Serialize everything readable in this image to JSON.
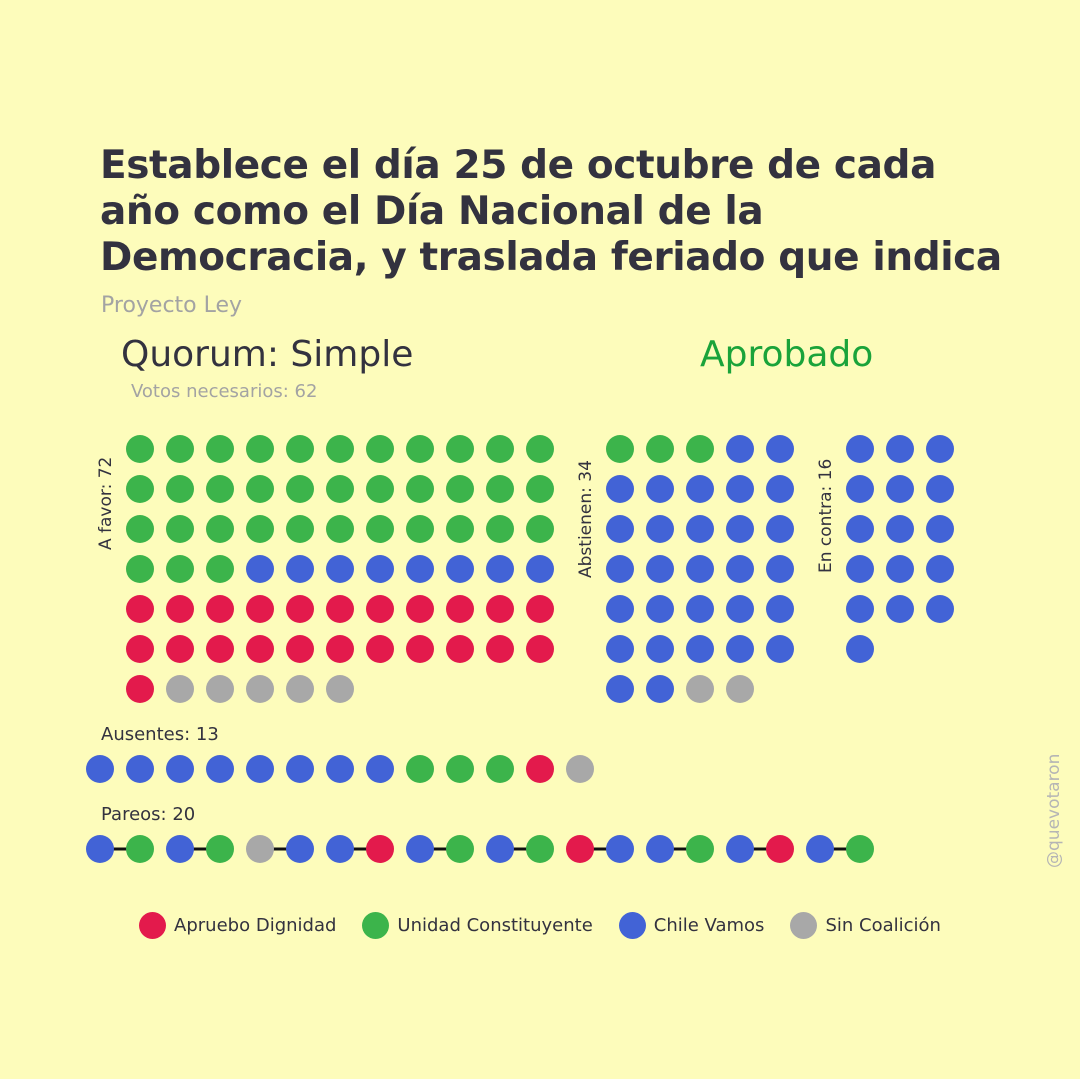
{
  "title": "Establece el día 25 de octubre de cada año como el Día Nacional de la Democracia, y traslada feriado que indica",
  "subtitle": "Proyecto Ley",
  "quorum": "Quorum: Simple",
  "votes_needed": "Votos necesarios: 62",
  "result": "Aprobado",
  "watermark": "@quevotaron",
  "colors": {
    "background": "#fdfcbb",
    "apruebo_dignidad": "#e31a4c",
    "unidad_constituyente": "#3cb44b",
    "chile_vamos": "#4263d6",
    "sin_coalicion": "#a8a8a8",
    "aprobado": "#1aa33a",
    "text": "#33323f"
  },
  "chart_data": {
    "type": "dot-matrix",
    "groups": [
      {
        "key": "a_favor",
        "label": "A favor: 72",
        "count": 72,
        "composition": {
          "unidad_constituyente": 36,
          "chile_vamos": 8,
          "apruebo_dignidad": 23,
          "sin_coalicion": 5
        }
      },
      {
        "key": "abstienen",
        "label": "Abstienen: 34",
        "count": 34,
        "composition": {
          "chile_vamos": 29,
          "unidad_constituyente": 3,
          "sin_coalicion": 2
        }
      },
      {
        "key": "en_contra",
        "label": "En contra: 16",
        "count": 16,
        "composition": {
          "chile_vamos": 16
        }
      }
    ],
    "ausentes": {
      "label": "Ausentes: 13",
      "count": 13,
      "sequence": [
        "chile_vamos",
        "chile_vamos",
        "chile_vamos",
        "chile_vamos",
        "chile_vamos",
        "chile_vamos",
        "chile_vamos",
        "chile_vamos",
        "unidad_constituyente",
        "unidad_constituyente",
        "unidad_constituyente",
        "apruebo_dignidad",
        "sin_coalicion"
      ]
    },
    "pareos": {
      "label": "Pareos: 20",
      "count": 20,
      "pairs": [
        [
          "chile_vamos",
          "unidad_constituyente"
        ],
        [
          "chile_vamos",
          "unidad_constituyente"
        ],
        [
          "sin_coalicion",
          "chile_vamos"
        ],
        [
          "chile_vamos",
          "apruebo_dignidad"
        ],
        [
          "chile_vamos",
          "unidad_constituyente"
        ],
        [
          "chile_vamos",
          "unidad_constituyente"
        ],
        [
          "apruebo_dignidad",
          "chile_vamos"
        ],
        [
          "chile_vamos",
          "unidad_constituyente"
        ],
        [
          "chile_vamos",
          "apruebo_dignidad"
        ],
        [
          "chile_vamos",
          "unidad_constituyente"
        ]
      ]
    },
    "legend": [
      {
        "key": "apruebo_dignidad",
        "label": "Apruebo Dignidad"
      },
      {
        "key": "unidad_constituyente",
        "label": "Unidad Constituyente"
      },
      {
        "key": "chile_vamos",
        "label": "Chile Vamos"
      },
      {
        "key": "sin_coalicion",
        "label": "Sin Coalición"
      }
    ]
  }
}
